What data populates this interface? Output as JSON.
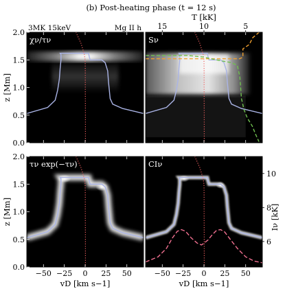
{
  "figure": {
    "title": "(b) Post-heating phase (t = 12 s)",
    "left_header": "3MK 15keV",
    "right_header": "Mg II h"
  },
  "colors": {
    "velocity_line": "#f06060",
    "tau_line": "#aab4e6",
    "temperature_line": "#f0a030",
    "source_function_line": "#70c050",
    "intensity_line": "#f07090",
    "axis": "#000000",
    "tick_label": "#000000"
  },
  "chart_data": [
    {
      "type": "heatmap",
      "panel": "top-left",
      "label": "χν/τν",
      "ylabel": "z [Mm]",
      "xlim": [
        -70,
        70
      ],
      "ylim": [
        0,
        2.0
      ],
      "xticks": [
        -50,
        -25,
        0,
        25,
        50
      ],
      "yticks": [
        0.0,
        0.5,
        1.0,
        1.5,
        2.0
      ],
      "ytick_labels": [
        "0.0",
        "0.5",
        "1.0",
        "1.5",
        "2.0"
      ],
      "velocity_line": {
        "v": [
          -11,
          -8,
          -5,
          -3,
          -1,
          0,
          0.2,
          0.2,
          0.3,
          0.3
        ],
        "z": [
          2.0,
          1.9,
          1.8,
          1.7,
          1.6,
          1.5,
          1.3,
          1.0,
          0.5,
          0.0
        ]
      },
      "tau_unity": {
        "v": [
          -70,
          -45,
          -36,
          -33,
          -31,
          -30,
          -29,
          -29,
          -30,
          4,
          5,
          6,
          10,
          20,
          24,
          27,
          28,
          29,
          30,
          33,
          45,
          70
        ],
        "z": [
          0.53,
          0.64,
          0.77,
          0.95,
          1.15,
          1.35,
          1.5,
          1.6,
          1.62,
          1.62,
          1.55,
          1.5,
          1.5,
          1.5,
          1.45,
          1.3,
          1.1,
          0.95,
          0.8,
          0.7,
          0.62,
          0.53
        ]
      }
    },
    {
      "type": "heatmap",
      "panel": "top-right",
      "label": "Sν",
      "xlim": [
        -70,
        70
      ],
      "ylim": [
        0,
        2.0
      ],
      "xticks": [
        -50,
        -25,
        0,
        25,
        50
      ],
      "top_axis_label": "T [kK]",
      "top_ticks": [
        15,
        10,
        5
      ],
      "top_tick_v": [
        -50,
        0,
        50
      ],
      "velocity_line": {
        "v": [
          -11,
          -8,
          -5,
          -3,
          -1,
          0,
          0.2,
          0.2,
          0.3,
          0.3
        ],
        "z": [
          2.0,
          1.9,
          1.8,
          1.7,
          1.6,
          1.5,
          1.3,
          1.0,
          0.5,
          0.0
        ]
      },
      "tau_unity": {
        "v": [
          -70,
          -45,
          -36,
          -33,
          -31,
          -30,
          -29,
          -29,
          -30,
          4,
          5,
          6,
          10,
          20,
          24,
          27,
          28,
          29,
          30,
          33,
          45,
          70
        ],
        "z": [
          0.53,
          0.64,
          0.77,
          0.95,
          1.15,
          1.35,
          1.5,
          1.6,
          1.62,
          1.62,
          1.55,
          1.5,
          1.5,
          1.5,
          1.45,
          1.3,
          1.1,
          0.95,
          0.8,
          0.7,
          0.62,
          0.53
        ]
      },
      "temperature": {
        "T_kK": [
          2.5,
          3.5,
          4.0,
          5.0,
          5.0,
          5.5,
          7.0,
          20.0
        ],
        "z": [
          2.0,
          1.9,
          1.78,
          1.7,
          1.55,
          1.52,
          1.52,
          1.52
        ]
      },
      "source_function": {
        "v": [
          -70,
          -20,
          0,
          15,
          33,
          40,
          43,
          44,
          45,
          48,
          52,
          58,
          62,
          66
        ],
        "z": [
          1.58,
          1.58,
          1.55,
          1.5,
          1.45,
          1.4,
          1.2,
          1.0,
          0.8,
          0.6,
          0.45,
          0.3,
          0.15,
          0.02
        ]
      }
    },
    {
      "type": "heatmap",
      "panel": "bottom-left",
      "label": "τν exp(−τν)",
      "ylabel": "z [Mm]",
      "xlabel": "vD [km s−1]",
      "xlim": [
        -70,
        70
      ],
      "ylim": [
        0,
        2.0
      ],
      "xticks": [
        -50,
        -25,
        0,
        25,
        50
      ],
      "xtick_labels": [
        "−50",
        "−25",
        "0",
        "25",
        "50"
      ],
      "yticks": [
        0.0,
        0.5,
        1.0,
        1.5,
        2.0
      ],
      "ytick_labels": [
        "0.0",
        "0.5",
        "1.0",
        "1.5",
        "2.0"
      ],
      "velocity_line": {
        "v": [
          -11,
          -8,
          -5,
          -3,
          -1,
          0,
          0.2,
          0.2,
          0.3,
          0.3
        ],
        "z": [
          2.0,
          1.9,
          1.8,
          1.7,
          1.6,
          1.5,
          1.3,
          1.0,
          0.5,
          0.0
        ]
      },
      "tau_unity": {
        "v": [
          -70,
          -45,
          -36,
          -33,
          -31,
          -30,
          -29,
          -29,
          -30,
          4,
          5,
          6,
          10,
          20,
          24,
          27,
          28,
          29,
          30,
          33,
          45,
          70
        ],
        "z": [
          0.53,
          0.64,
          0.77,
          0.95,
          1.15,
          1.35,
          1.5,
          1.6,
          1.62,
          1.62,
          1.55,
          1.5,
          1.5,
          1.5,
          1.45,
          1.3,
          1.1,
          0.95,
          0.8,
          0.7,
          0.62,
          0.53
        ]
      }
    },
    {
      "type": "heatmap",
      "panel": "bottom-right",
      "label": "CIν",
      "xlabel": "vD [km s−1]",
      "xlim": [
        -70,
        70
      ],
      "ylim": [
        0,
        2.0
      ],
      "xticks": [
        -50,
        -25,
        0,
        25,
        50
      ],
      "xtick_labels": [
        "−50",
        "−25",
        "0",
        "25",
        "50"
      ],
      "right_axis_label": "Iν [kK]",
      "right_ticks": [
        6,
        8,
        10
      ],
      "right_ylim": [
        4.5,
        11.0
      ],
      "velocity_line": {
        "v": [
          -11,
          -8,
          -5,
          -3,
          -1,
          0,
          0.2,
          0.2,
          0.3,
          0.3
        ],
        "z": [
          2.0,
          1.9,
          1.8,
          1.7,
          1.6,
          1.5,
          1.3,
          1.0,
          0.5,
          0.0
        ]
      },
      "tau_unity": {
        "v": [
          -70,
          -45,
          -36,
          -33,
          -31,
          -30,
          -29,
          -29,
          -30,
          4,
          5,
          6,
          10,
          20,
          24,
          27,
          28,
          29,
          30,
          33,
          45,
          70
        ],
        "z": [
          0.53,
          0.64,
          0.77,
          0.95,
          1.15,
          1.35,
          1.5,
          1.6,
          1.62,
          1.62,
          1.55,
          1.5,
          1.5,
          1.5,
          1.45,
          1.3,
          1.1,
          0.95,
          0.8,
          0.7,
          0.62,
          0.53
        ]
      },
      "intensity_profile": {
        "v": [
          -70,
          -55,
          -45,
          -38,
          -32,
          -27,
          -22,
          -15,
          -8,
          -3,
          0,
          5,
          10,
          15,
          20,
          25,
          32,
          40,
          50,
          60,
          70
        ],
        "I_kK": [
          4.8,
          5.1,
          5.6,
          6.2,
          6.6,
          6.7,
          6.6,
          6.2,
          5.9,
          5.8,
          5.9,
          6.1,
          6.4,
          6.65,
          6.7,
          6.55,
          6.1,
          5.6,
          5.1,
          4.85,
          4.75
        ]
      }
    }
  ]
}
